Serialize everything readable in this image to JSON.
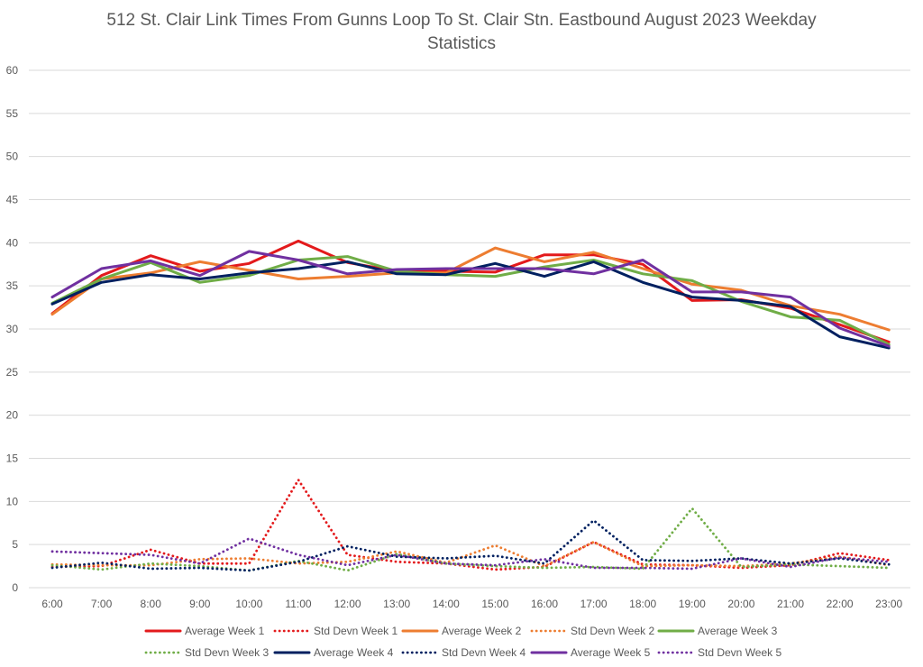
{
  "chart_data": {
    "type": "line",
    "title": "512 St. Clair Link Times From Gunns Loop To St. Clair Stn. Eastbound August 2023 Weekday Statistics",
    "xlabel": "",
    "ylabel": "",
    "ylim": [
      0,
      60
    ],
    "yticks": [
      0,
      5,
      10,
      15,
      20,
      25,
      30,
      35,
      40,
      45,
      50,
      55,
      60
    ],
    "grid": true,
    "legend_position": "bottom",
    "categories": [
      "6:00",
      "7:00",
      "8:00",
      "9:00",
      "10:00",
      "11:00",
      "12:00",
      "13:00",
      "14:00",
      "15:00",
      "16:00",
      "17:00",
      "18:00",
      "19:00",
      "20:00",
      "21:00",
      "22:00",
      "23:00"
    ],
    "series": [
      {
        "name": "Average Week 1",
        "style": "solid",
        "color": "#e31a1c",
        "values": [
          31.8,
          36.2,
          38.5,
          36.7,
          37.6,
          40.2,
          37.7,
          36.7,
          36.7,
          36.6,
          38.6,
          38.6,
          37.5,
          33.3,
          33.4,
          32.4,
          30.5,
          28.5
        ]
      },
      {
        "name": "Std Devn Week 1",
        "style": "dotted",
        "color": "#e31a1c",
        "values": [
          2.4,
          2.5,
          4.4,
          2.8,
          2.8,
          12.5,
          3.8,
          3.0,
          2.8,
          2.1,
          2.4,
          5.3,
          2.7,
          2.6,
          2.3,
          2.6,
          4.0,
          3.2
        ]
      },
      {
        "name": "Average Week 2",
        "style": "solid",
        "color": "#ed7d31",
        "values": [
          31.7,
          35.8,
          36.5,
          37.8,
          36.8,
          35.8,
          36.1,
          36.5,
          36.5,
          39.4,
          37.8,
          38.9,
          37.0,
          35.2,
          34.5,
          32.7,
          31.7,
          29.9
        ]
      },
      {
        "name": "Std Devn Week 2",
        "style": "dotted",
        "color": "#ed7d31",
        "values": [
          2.7,
          2.6,
          2.6,
          3.3,
          3.4,
          2.8,
          3.0,
          4.2,
          2.9,
          4.9,
          2.5,
          5.3,
          2.5,
          2.6,
          2.5,
          2.8,
          3.6,
          2.6
        ]
      },
      {
        "name": "Average Week 3",
        "style": "solid",
        "color": "#70ad47",
        "values": [
          33.0,
          35.8,
          37.7,
          35.4,
          36.2,
          38.0,
          38.4,
          36.7,
          36.3,
          36.1,
          37.2,
          38.0,
          36.4,
          35.6,
          33.2,
          31.4,
          31.0,
          28.2
        ]
      },
      {
        "name": "Std Devn Week 3",
        "style": "dotted",
        "color": "#70ad47",
        "values": [
          2.6,
          2.1,
          2.8,
          2.5,
          2.0,
          3.1,
          2.0,
          3.9,
          2.8,
          2.5,
          2.3,
          2.4,
          2.2,
          9.2,
          2.4,
          2.7,
          2.5,
          2.3
        ]
      },
      {
        "name": "Average Week 4",
        "style": "solid",
        "color": "#002060",
        "values": [
          32.9,
          35.4,
          36.3,
          35.8,
          36.5,
          37.0,
          37.8,
          36.4,
          36.3,
          37.6,
          36.1,
          37.8,
          35.4,
          33.7,
          33.3,
          32.6,
          29.1,
          27.8
        ]
      },
      {
        "name": "Std Devn Week 4",
        "style": "dotted",
        "color": "#002060",
        "values": [
          2.3,
          2.9,
          2.2,
          2.3,
          2.0,
          3.0,
          4.8,
          3.6,
          3.4,
          3.7,
          2.8,
          7.8,
          3.2,
          3.1,
          3.4,
          2.8,
          3.4,
          2.7
        ]
      },
      {
        "name": "Average Week 5",
        "style": "solid",
        "color": "#7030a0",
        "values": [
          33.7,
          37.0,
          37.9,
          36.2,
          39.0,
          38.0,
          36.4,
          36.9,
          37.0,
          37.0,
          37.0,
          36.4,
          38.0,
          34.3,
          34.3,
          33.7,
          30.1,
          28.0
        ]
      },
      {
        "name": "Std Devn Week 5",
        "style": "dotted",
        "color": "#7030a0",
        "values": [
          4.2,
          4.0,
          3.8,
          2.8,
          5.7,
          3.8,
          2.6,
          3.8,
          2.8,
          2.6,
          3.3,
          2.3,
          2.3,
          2.2,
          3.4,
          2.4,
          3.5,
          3.0
        ]
      }
    ]
  }
}
